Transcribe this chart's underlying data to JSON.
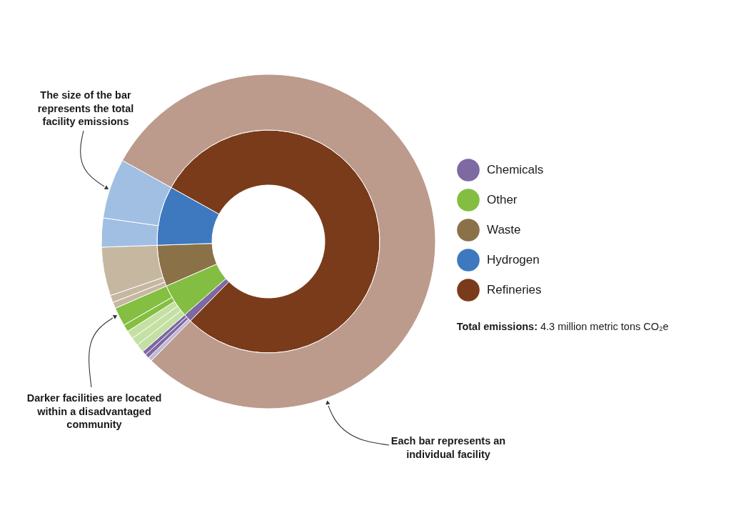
{
  "chart_data": {
    "type": "donut",
    "categories": [
      "Chemicals",
      "Other",
      "Waste",
      "Hydrogen",
      "Refineries"
    ],
    "series": [
      {
        "values": [
          1.2,
          4.9,
          6.0,
          8.6,
          79.3
        ],
        "colors": [
          "#7e69a3",
          "#83be42",
          "#8b7147",
          "#3e79bf",
          "#7a3b1b"
        ]
      },
      {
        "x": [
          null,
          null,
          null,
          null,
          null,
          null,
          null,
          null,
          null,
          null,
          null,
          null,
          null,
          null
        ],
        "values": [
          0.4,
          0.4,
          0.4,
          0.8,
          0.8,
          0.8,
          0.7,
          1.8,
          0.6,
          0.7,
          4.7,
          2.8,
          5.8,
          79.3
        ],
        "colors": [
          "#c2b8d6",
          "#7d68a2",
          "#7d68a2",
          "#c5e0a3",
          "#c5e0a3",
          "#c5e0a3",
          "#84bf41",
          "#84bf41",
          "#c6b7a1",
          "#c6b7a1",
          "#c6b7a1",
          "#a0bfe2",
          "#a0bfe2",
          "#bc9b8c"
        ]
      }
    ],
    "legend": "right",
    "annotations": [
      "The size of the bar\nrepresents the total\nfacility emissions",
      "Darker facilities are located\nwithin a disadvantaged\ncommunity",
      "Each bar represents an\nindividual facility",
      "Total emissions:",
      "4.3 million metric tons CO₂e"
    ]
  }
}
